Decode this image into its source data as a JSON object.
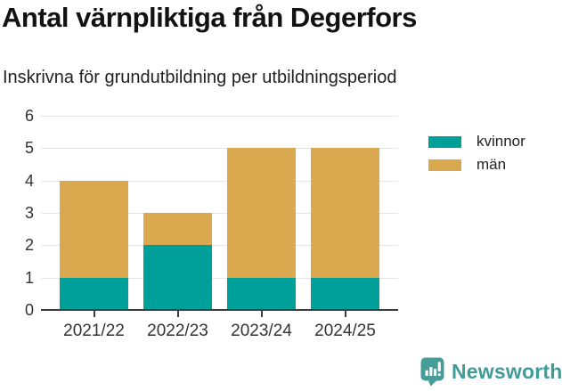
{
  "header": {
    "title": "Antal värnpliktiga från Degerfors",
    "subtitle": "Inskrivna för grundutbildning per utbildningsperiod"
  },
  "chart_data": {
    "type": "bar",
    "stacked": true,
    "title": "Antal värnpliktiga från Degerfors",
    "subtitle": "Inskrivna för grundutbildning per utbildningsperiod",
    "categories": [
      "2021/22",
      "2022/23",
      "2023/24",
      "2024/25"
    ],
    "series": [
      {
        "name": "kvinnor",
        "color": "#00A09A",
        "values": [
          1,
          2,
          1,
          1
        ]
      },
      {
        "name": "män",
        "color": "#DAA94F",
        "values": [
          3,
          1,
          4,
          4
        ]
      }
    ],
    "totals": [
      4,
      3,
      5,
      5
    ],
    "ylim": [
      0,
      6
    ],
    "yticks": [
      0,
      1,
      2,
      3,
      4,
      5,
      6
    ],
    "xlabel": "",
    "ylabel": "",
    "grid": true,
    "legend_position": "right"
  },
  "footer": {
    "brand": "Newsworthy",
    "brand_color": "#3E9C99"
  },
  "colors": {
    "grid": "#E5E5E5",
    "axis": "#3D3D3D",
    "axis_text": "#333333",
    "title_text": "#121212",
    "kvinnor": "#00A09A",
    "man": "#DAA94F"
  }
}
